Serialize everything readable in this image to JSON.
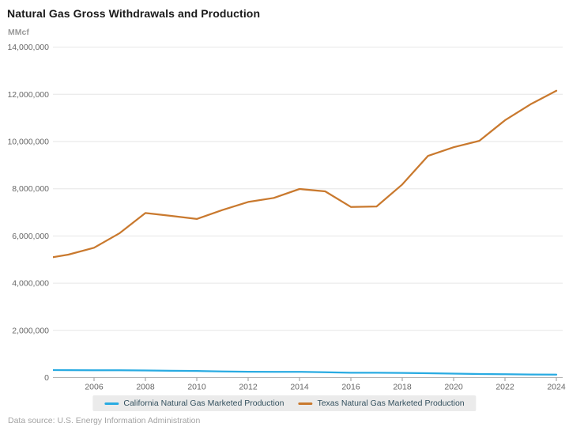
{
  "page": {
    "title": "Natural Gas Gross Withdrawals and Production",
    "unit_label": "MMcf",
    "footer": "Data source: U.S. Energy Information Administration"
  },
  "chart_data": {
    "type": "line",
    "title": "Natural Gas Gross Withdrawals and Production",
    "ylabel": "MMcf",
    "xlabel": "",
    "grid": true,
    "legend_position": "bottom",
    "ylim": [
      0,
      14000000
    ],
    "y_ticks": [
      0,
      2000000,
      4000000,
      6000000,
      8000000,
      10000000,
      12000000,
      14000000
    ],
    "x_ticks": [
      2006,
      2008,
      2010,
      2012,
      2014,
      2016,
      2018,
      2020,
      2022,
      2024
    ],
    "x": [
      2004,
      2005,
      2006,
      2007,
      2008,
      2009,
      2010,
      2011,
      2012,
      2013,
      2014,
      2015,
      2016,
      2017,
      2018,
      2019,
      2020,
      2021,
      2022,
      2023,
      2024
    ],
    "series": [
      {
        "name": "California Natural Gas Marketed Production",
        "color": "#29abe2",
        "values": [
          318000,
          314000,
          310000,
          312000,
          301000,
          288000,
          283000,
          262000,
          248000,
          245000,
          243000,
          228000,
          206000,
          203000,
          198000,
          184000,
          166000,
          152000,
          140000,
          131000,
          123000
        ]
      },
      {
        "name": "Texas Natural Gas Marketed Production",
        "color": "#c9792e",
        "values": [
          5030000,
          5210000,
          5500000,
          6120000,
          6970000,
          6850000,
          6720000,
          7100000,
          7440000,
          7610000,
          7990000,
          7890000,
          7230000,
          7250000,
          8180000,
          9390000,
          9760000,
          10030000,
          10900000,
          11580000,
          12150000
        ]
      }
    ],
    "colors": {
      "grid_line": "#e6e6e6",
      "axis_line": "#b3b3b3",
      "tick_label": "#666666"
    }
  }
}
